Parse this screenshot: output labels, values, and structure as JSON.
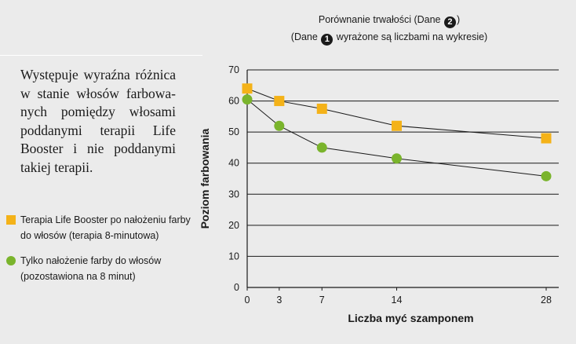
{
  "header": {
    "title_prefix": "Porównanie trwałości (Dane ",
    "title_badge": "2",
    "title_suffix": ")",
    "subtitle_prefix": "(Dane ",
    "subtitle_badge": "1",
    "subtitle_suffix": " wyrażone są liczbami na wykresie)"
  },
  "description": "Występuje wyraźna różnica w stanie włosów farbowa-nych pomiędzy włosami poddanymi terapii Life Booster i nie poddanymi takiej terapii.",
  "legend": [
    {
      "marker": "square",
      "color": "#f4b218",
      "label": "Terapia Life Booster po nałożeniu farby do włosów (terapia 8-minutowa)"
    },
    {
      "marker": "circle",
      "color": "#7ab42c",
      "label": "Tylko nałożenie farby do włosów (pozostawiona na 8 minut)"
    }
  ],
  "chart_data": {
    "type": "line",
    "title": "",
    "xlabel": "Liczba myć szamponem",
    "ylabel": "Poziom farbowania",
    "x": [
      0,
      3,
      7,
      14,
      28
    ],
    "x_tick_labels": [
      "0",
      "3",
      "7",
      "14",
      "28"
    ],
    "xlim": [
      0,
      28
    ],
    "ylim": [
      0,
      70
    ],
    "y_ticks": [
      0,
      10,
      20,
      30,
      40,
      50,
      60,
      70
    ],
    "grid": true,
    "legend_position": "left",
    "series": [
      {
        "name": "Terapia Life Booster po nałożeniu farby do włosów (terapia 8-minutowa)",
        "marker": "square",
        "color": "#f4b218",
        "values": [
          64,
          60,
          57.5,
          52,
          48
        ]
      },
      {
        "name": "Tylko nałożenie farby do włosów (pozostawiona na 8 minut)",
        "marker": "circle",
        "color": "#7ab42c",
        "values": [
          60.5,
          52,
          45,
          41.5,
          35.8
        ]
      }
    ]
  }
}
